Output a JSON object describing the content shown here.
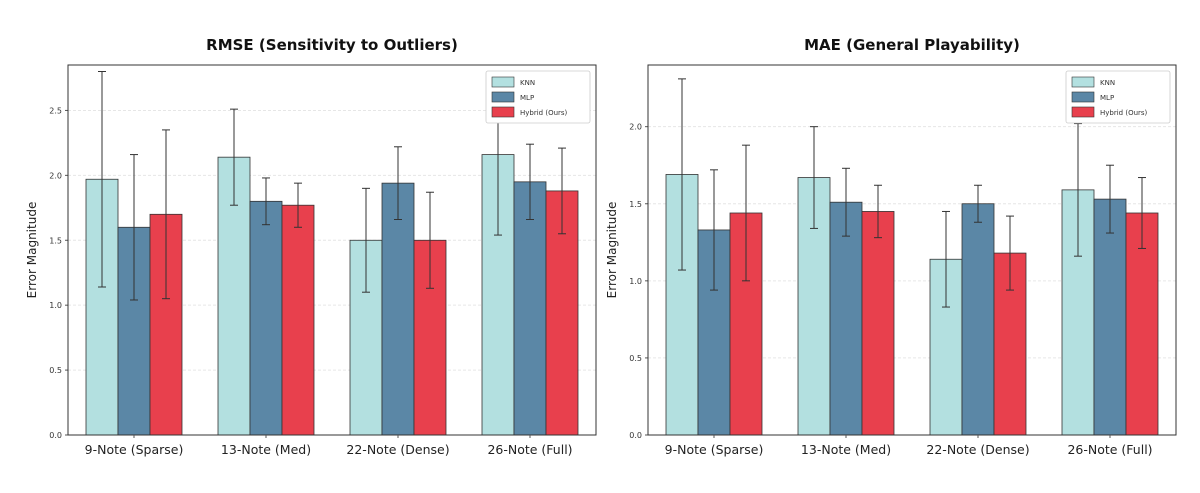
{
  "colors": {
    "KNN": "#b3e0e0",
    "MLP": "#5b87a6",
    "Hybrid (Ours)": "#e8404d"
  },
  "chart_data": [
    {
      "type": "bar",
      "title": "RMSE (Sensitivity to Outliers)",
      "xlabel": "",
      "ylabel": "Error Magnitude",
      "ylim": [
        0,
        2.85
      ],
      "yticks": [
        "0.0",
        "0.5",
        "1.0",
        "1.5",
        "2.0",
        "2.5"
      ],
      "grid": true,
      "legend": "top-right",
      "categories": [
        "9-Note (Sparse)",
        "13-Note (Med)",
        "22-Note (Dense)",
        "26-Note (Full)"
      ],
      "series": [
        {
          "name": "KNN",
          "values": [
            1.97,
            2.14,
            1.5,
            2.16
          ],
          "errors": [
            0.83,
            0.37,
            0.4,
            0.62
          ]
        },
        {
          "name": "MLP",
          "values": [
            1.6,
            1.8,
            1.94,
            1.95
          ],
          "errors": [
            0.56,
            0.18,
            0.28,
            0.29
          ]
        },
        {
          "name": "Hybrid (Ours)",
          "values": [
            1.7,
            1.77,
            1.5,
            1.88
          ],
          "errors": [
            0.65,
            0.17,
            0.37,
            0.33
          ]
        }
      ]
    },
    {
      "type": "bar",
      "title": "MAE (General Playability)",
      "xlabel": "",
      "ylabel": "Error Magnitude",
      "ylim": [
        0,
        2.4
      ],
      "yticks": [
        "0.0",
        "0.5",
        "1.0",
        "1.5",
        "2.0"
      ],
      "grid": true,
      "legend": "top-right",
      "categories": [
        "9-Note (Sparse)",
        "13-Note (Med)",
        "22-Note (Dense)",
        "26-Note (Full)"
      ],
      "series": [
        {
          "name": "KNN",
          "values": [
            1.69,
            1.67,
            1.14,
            1.59
          ],
          "errors": [
            0.62,
            0.33,
            0.31,
            0.43
          ]
        },
        {
          "name": "MLP",
          "values": [
            1.33,
            1.51,
            1.5,
            1.53
          ],
          "errors": [
            0.39,
            0.22,
            0.12,
            0.22
          ]
        },
        {
          "name": "Hybrid (Ours)",
          "values": [
            1.44,
            1.45,
            1.18,
            1.44
          ],
          "errors": [
            0.44,
            0.17,
            0.24,
            0.23
          ]
        }
      ]
    }
  ]
}
